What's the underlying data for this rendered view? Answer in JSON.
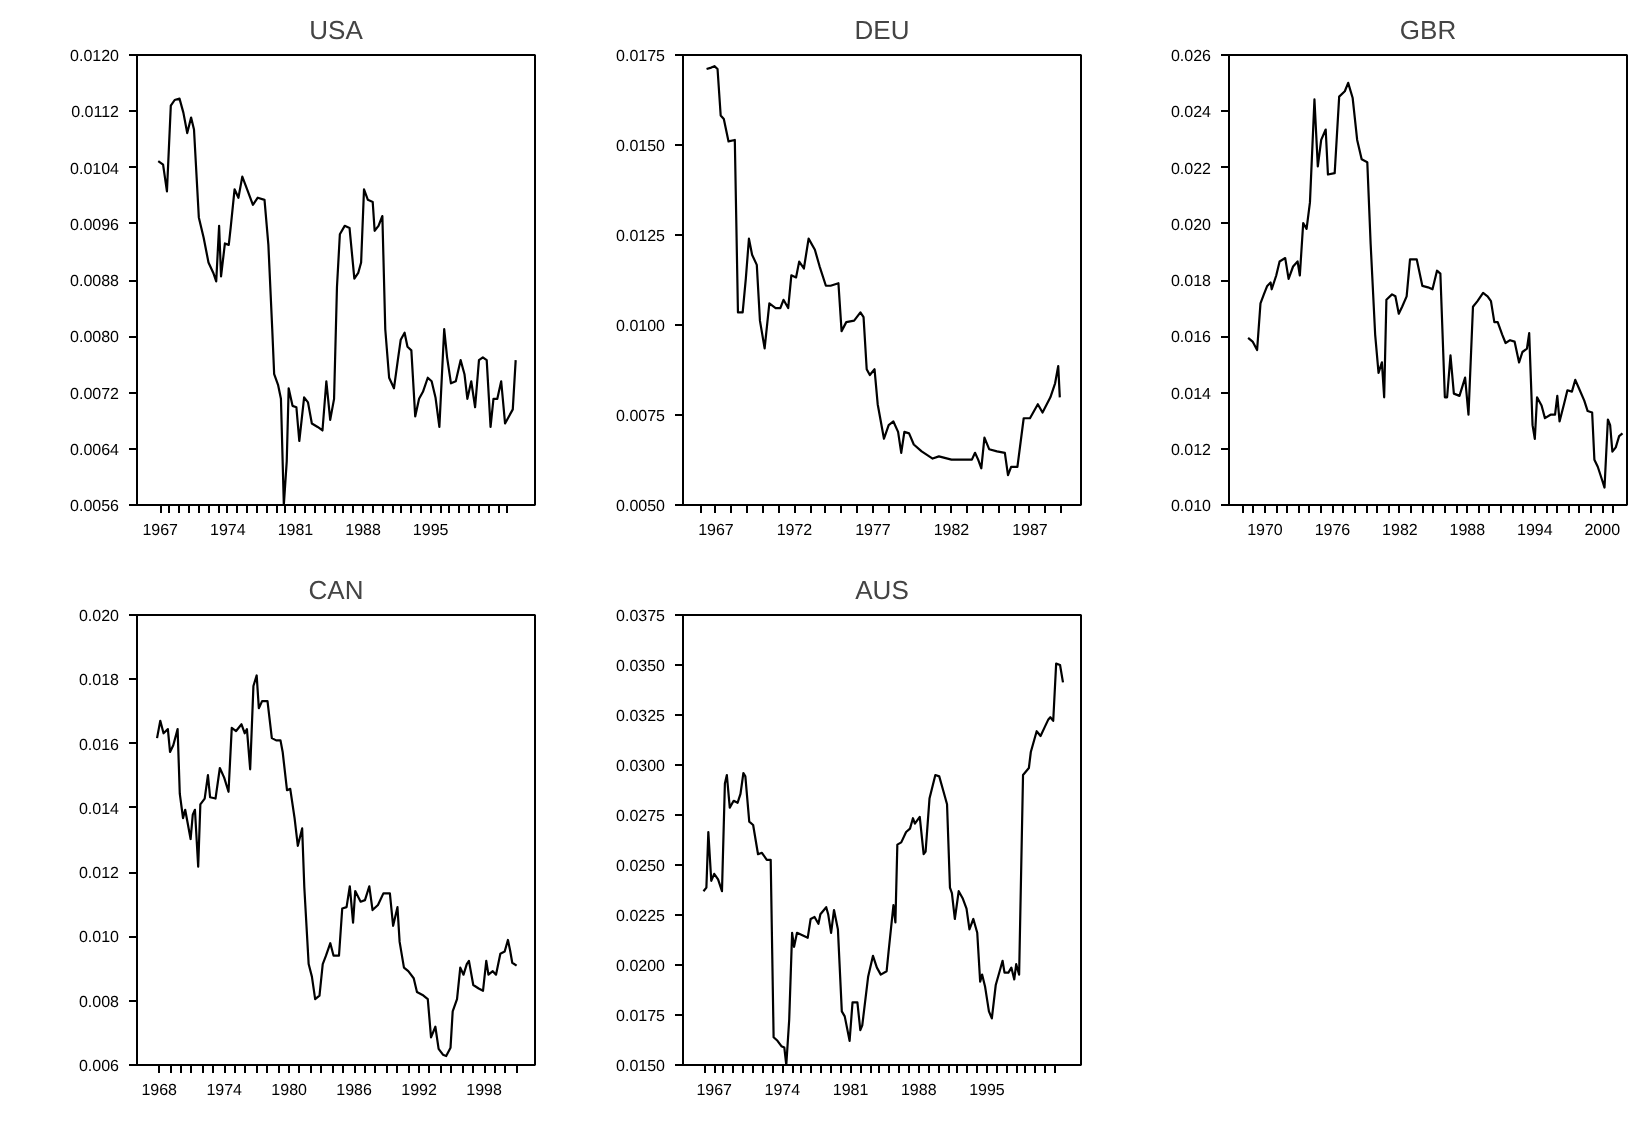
{
  "chart_data": [
    {
      "type": "line",
      "title": "USA",
      "x": [
        1966.8,
        1967.3,
        1967.7,
        1968.1,
        1968.5,
        1969.0,
        1969.4,
        1969.8,
        1970.2,
        1970.5,
        1971.0,
        1971.5,
        1972.0,
        1972.5,
        1972.8,
        1973.1,
        1973.3,
        1973.7,
        1974.1,
        1974.3,
        1974.7,
        1975.1,
        1975.5,
        1976.0,
        1976.6,
        1977.1,
        1977.8,
        1978.2,
        1978.6,
        1978.8,
        1979.2,
        1979.5,
        1979.8,
        1980.1,
        1980.3,
        1980.7,
        1981.1,
        1981.4,
        1981.9,
        1982.3,
        1982.7,
        1983.3,
        1983.8,
        1984.2,
        1984.6,
        1985.0,
        1985.3,
        1985.6,
        1986.1,
        1986.6,
        1987.1,
        1987.5,
        1987.8,
        1988.1,
        1988.5,
        1989.0,
        1989.2,
        1989.6,
        1990.0,
        1990.3,
        1990.7,
        1991.2,
        1991.6,
        1991.9,
        1992.3,
        1992.6,
        1993.0,
        1993.4,
        1993.8,
        1994.2,
        1994.7,
        1995.1,
        1995.5,
        1995.9,
        1996.4,
        1996.7,
        1997.1,
        1997.6,
        1998.1,
        1998.5,
        1998.8,
        1999.2,
        1999.6,
        2000.0,
        2000.4,
        2000.8,
        2001.2,
        2001.5,
        2001.9,
        2002.3,
        2002.7,
        2003.1,
        2003.5,
        2003.8
      ],
      "series": [
        {
          "color": "#000000",
          "values": [
            0.01049,
            0.01044,
            0.01006,
            0.01128,
            0.01136,
            0.01138,
            0.01118,
            0.01089,
            0.01111,
            0.01094,
            0.00969,
            0.0094,
            0.00905,
            0.0089,
            0.00878,
            0.00957,
            0.00885,
            0.00932,
            0.0093,
            0.00955,
            0.01009,
            0.00997,
            0.01027,
            0.01009,
            0.00987,
            0.00997,
            0.00994,
            0.0093,
            0.0081,
            0.00746,
            0.00731,
            0.00711,
            0.0056,
            0.00622,
            0.00726,
            0.00701,
            0.00699,
            0.00651,
            0.00713,
            0.00706,
            0.00676,
            0.00671,
            0.00666,
            0.00736,
            0.00681,
            0.00711,
            0.0087,
            0.00945,
            0.00957,
            0.00954,
            0.00882,
            0.0089,
            0.00905,
            0.01009,
            0.00994,
            0.00991,
            0.0095,
            0.00957,
            0.00971,
            0.0081,
            0.00741,
            0.00726,
            0.00766,
            0.00795,
            0.00805,
            0.00785,
            0.0078,
            0.00686,
            0.00711,
            0.00721,
            0.00741,
            0.00736,
            0.00713,
            0.00671,
            0.0081,
            0.0077,
            0.00733,
            0.00736,
            0.00766,
            0.00746,
            0.00711,
            0.00736,
            0.00699,
            0.00766,
            0.0077,
            0.00766,
            0.00671,
            0.00711,
            0.00711,
            0.00736,
            0.00676,
            0.00686,
            0.00696,
            0.00766
          ]
        }
      ],
      "xlim": [
        1964.6,
        2005.8
      ],
      "ylim": [
        0.0056,
        0.012
      ],
      "yticks": [
        {
          "value": 0.0056,
          "label": "0.0056"
        },
        {
          "value": 0.0064,
          "label": "0.0064"
        },
        {
          "value": 0.0072,
          "label": "0.0072"
        },
        {
          "value": 0.008,
          "label": "0.0080"
        },
        {
          "value": 0.0088,
          "label": "0.0088"
        },
        {
          "value": 0.0096,
          "label": "0.0096"
        },
        {
          "value": 0.0104,
          "label": "0.0104"
        },
        {
          "value": 0.0112,
          "label": "0.0112"
        },
        {
          "value": 0.012,
          "label": "0.0120"
        }
      ],
      "xticks": [
        1967,
        {
          "value": 1968,
          "label": null
        },
        {
          "value": 1969,
          "label": null
        },
        {
          "value": 1970,
          "label": null
        },
        {
          "value": 1971,
          "label": null
        },
        {
          "value": 1972,
          "label": null
        },
        {
          "value": 1973,
          "label": null
        },
        1974,
        {
          "value": 1975,
          "label": null
        },
        {
          "value": 1976,
          "label": null
        },
        {
          "value": 1977,
          "label": null
        },
        {
          "value": 1978,
          "label": null
        },
        {
          "value": 1979,
          "label": null
        },
        {
          "value": 1980,
          "label": null
        },
        1981,
        {
          "value": 1982,
          "label": null
        },
        {
          "value": 1983,
          "label": null
        },
        {
          "value": 1984,
          "label": null
        },
        {
          "value": 1985,
          "label": null
        },
        {
          "value": 1986,
          "label": null
        },
        {
          "value": 1987,
          "label": null
        },
        1988,
        {
          "value": 1989,
          "label": null
        },
        {
          "value": 1990,
          "label": null
        },
        {
          "value": 1991,
          "label": null
        },
        {
          "value": 1992,
          "label": null
        },
        {
          "value": 1993,
          "label": null
        },
        {
          "value": 1994,
          "label": null
        },
        1995,
        {
          "value": 1996,
          "label": null
        },
        {
          "value": 1997,
          "label": null
        },
        {
          "value": 1998,
          "label": null
        },
        {
          "value": 1999,
          "label": null
        },
        {
          "value": 2000,
          "label": null
        },
        {
          "value": 2001,
          "label": null
        },
        {
          "value": 2002,
          "label": null
        },
        {
          "value": 2003,
          "label": null
        }
      ]
    },
    {
      "type": "line",
      "title": "DEU",
      "x": [
        1966.4,
        1966.7,
        1966.9,
        1967.1,
        1967.3,
        1967.5,
        1967.8,
        1968.2,
        1968.4,
        1968.7,
        1968.9,
        1969.1,
        1969.3,
        1969.6,
        1969.8,
        1970.1,
        1970.4,
        1970.8,
        1971.1,
        1971.3,
        1971.6,
        1971.8,
        1972.1,
        1972.3,
        1972.6,
        1972.9,
        1973.3,
        1973.6,
        1974.0,
        1974.3,
        1974.8,
        1975.0,
        1975.3,
        1975.8,
        1976.2,
        1976.4,
        1976.6,
        1976.8,
        1977.1,
        1977.3,
        1977.7,
        1978.0,
        1978.3,
        1978.6,
        1978.8,
        1979.0,
        1979.3,
        1979.6,
        1980.1,
        1980.8,
        1981.2,
        1982.0,
        1982.8,
        1983.3,
        1983.5,
        1983.7,
        1983.9,
        1984.1,
        1984.4,
        1984.9,
        1985.4,
        1985.6,
        1985.8,
        1986.2,
        1986.6,
        1987.0,
        1987.5,
        1987.8,
        1988.3,
        1988.6,
        1988.8,
        1988.9
      ],
      "series": [
        {
          "color": "#000000",
          "values": [
            0.01711,
            0.01715,
            0.01719,
            0.01711,
            0.01582,
            0.01572,
            0.0151,
            0.01514,
            0.01035,
            0.01035,
            0.01128,
            0.0124,
            0.01195,
            0.01167,
            0.01012,
            0.00935,
            0.0106,
            0.01047,
            0.01047,
            0.0107,
            0.01047,
            0.01138,
            0.01132,
            0.01176,
            0.01157,
            0.0124,
            0.01209,
            0.01163,
            0.01109,
            0.01109,
            0.01116,
            0.00983,
            0.01008,
            0.01012,
            0.01035,
            0.01022,
            0.00877,
            0.00861,
            0.00877,
            0.0078,
            0.00684,
            0.00722,
            0.00732,
            0.00703,
            0.00645,
            0.00703,
            0.00699,
            0.00668,
            0.00649,
            0.00629,
            0.00635,
            0.00626,
            0.00626,
            0.00626,
            0.00645,
            0.00626,
            0.00602,
            0.00687,
            0.00655,
            0.00649,
            0.00645,
            0.00583,
            0.00606,
            0.00606,
            0.00741,
            0.00741,
            0.0078,
            0.00757,
            0.00799,
            0.00838,
            0.00886,
            0.00799
          ]
        }
      ],
      "xlim": [
        1964.9,
        1990.25
      ],
      "ylim": [
        0.005,
        0.0175
      ],
      "yticks": [
        {
          "value": 0.005,
          "label": "0.0050"
        },
        {
          "value": 0.0075,
          "label": "0.0075"
        },
        {
          "value": 0.01,
          "label": "0.0100"
        },
        {
          "value": 0.0125,
          "label": "0.0125"
        },
        {
          "value": 0.015,
          "label": "0.0150"
        },
        {
          "value": 0.0175,
          "label": "0.0175"
        }
      ],
      "xticks": [
        {
          "value": 1966,
          "label": null
        },
        1967,
        {
          "value": 1968,
          "label": null
        },
        {
          "value": 1969,
          "label": null
        },
        {
          "value": 1970,
          "label": null
        },
        {
          "value": 1971,
          "label": null
        },
        1972,
        {
          "value": 1973,
          "label": null
        },
        {
          "value": 1974,
          "label": null
        },
        {
          "value": 1975,
          "label": null
        },
        {
          "value": 1976,
          "label": null
        },
        1977,
        {
          "value": 1978,
          "label": null
        },
        {
          "value": 1979,
          "label": null
        },
        {
          "value": 1980,
          "label": null
        },
        {
          "value": 1981,
          "label": null
        },
        1982,
        {
          "value": 1983,
          "label": null
        },
        {
          "value": 1984,
          "label": null
        },
        {
          "value": 1985,
          "label": null
        },
        {
          "value": 1986,
          "label": null
        },
        1987,
        {
          "value": 1988,
          "label": null
        },
        {
          "value": 1989,
          "label": null
        }
      ]
    },
    {
      "type": "line",
      "title": "GBR",
      "x": [
        1968.5,
        1968.9,
        1969.3,
        1969.6,
        1969.9,
        1970.2,
        1970.5,
        1970.6,
        1971.0,
        1971.3,
        1971.8,
        1972.1,
        1972.5,
        1972.9,
        1973.1,
        1973.4,
        1973.7,
        1974.0,
        1974.4,
        1974.7,
        1975.0,
        1975.4,
        1975.6,
        1976.2,
        1976.6,
        1977.1,
        1977.4,
        1977.8,
        1978.2,
        1978.6,
        1979.1,
        1979.4,
        1979.8,
        1980.1,
        1980.4,
        1980.6,
        1980.8,
        1981.3,
        1981.6,
        1981.9,
        1982.2,
        1982.6,
        1982.9,
        1983.5,
        1984.0,
        1984.5,
        1984.9,
        1985.3,
        1985.6,
        1986.0,
        1986.2,
        1986.5,
        1986.8,
        1987.3,
        1987.8,
        1988.1,
        1988.5,
        1988.9,
        1989.4,
        1989.8,
        1990.1,
        1990.4,
        1990.7,
        1991.1,
        1991.4,
        1991.8,
        1992.2,
        1992.6,
        1992.9,
        1993.3,
        1993.5,
        1993.8,
        1994.0,
        1994.2,
        1994.6,
        1994.9,
        1995.4,
        1995.8,
        1996.0,
        1996.2,
        1996.6,
        1996.9,
        1997.3,
        1997.6,
        1998.0,
        1998.4,
        1998.7,
        1999.1,
        1999.3,
        1999.6,
        2000.0,
        2000.2,
        2000.5,
        2000.7,
        2000.9,
        2001.2,
        2001.5,
        2001.8
      ],
      "series": [
        {
          "color": "#000000",
          "values": [
            0.01594,
            0.01581,
            0.01551,
            0.01717,
            0.01749,
            0.01779,
            0.01791,
            0.01767,
            0.01816,
            0.01866,
            0.01878,
            0.01804,
            0.01848,
            0.01866,
            0.01816,
            0.02002,
            0.01982,
            0.02076,
            0.02442,
            0.02204,
            0.02298,
            0.02335,
            0.02175,
            0.0218,
            0.02452,
            0.02471,
            0.02501,
            0.02447,
            0.02298,
            0.02229,
            0.02219,
            0.01927,
            0.01606,
            0.0147,
            0.01507,
            0.01383,
            0.0173,
            0.01749,
            0.01742,
            0.0168,
            0.01705,
            0.01742,
            0.01873,
            0.01873,
            0.01779,
            0.01774,
            0.01767,
            0.01833,
            0.01823,
            0.01383,
            0.01383,
            0.01532,
            0.01396,
            0.01388,
            0.01453,
            0.01321,
            0.01705,
            0.01725,
            0.01754,
            0.01742,
            0.01725,
            0.0165,
            0.0165,
            0.01606,
            0.01576,
            0.01586,
            0.01581,
            0.01507,
            0.01544,
            0.01556,
            0.01611,
            0.01284,
            0.01235,
            0.01383,
            0.01354,
            0.01309,
            0.01321,
            0.01321,
            0.01388,
            0.01297,
            0.01359,
            0.01408,
            0.01403,
            0.01445,
            0.01408,
            0.01371,
            0.01334,
            0.01329,
            0.01161,
            0.01136,
            0.01087,
            0.01062,
            0.01304,
            0.01284,
            0.0119,
            0.01205,
            0.01245,
            0.01255
          ]
        }
      ],
      "xlim": [
        1966.8,
        2002.2
      ],
      "ylim": [
        0.01,
        0.026
      ],
      "yticks": [
        {
          "value": 0.01,
          "label": "0.010"
        },
        {
          "value": 0.012,
          "label": "0.012"
        },
        {
          "value": 0.014,
          "label": "0.014"
        },
        {
          "value": 0.016,
          "label": "0.016"
        },
        {
          "value": 0.018,
          "label": "0.018"
        },
        {
          "value": 0.02,
          "label": "0.020"
        },
        {
          "value": 0.022,
          "label": "0.022"
        },
        {
          "value": 0.024,
          "label": "0.024"
        },
        {
          "value": 0.026,
          "label": "0.026"
        }
      ],
      "xticks": [
        {
          "value": 1968,
          "label": null
        },
        {
          "value": 1969,
          "label": null
        },
        1970,
        {
          "value": 1971,
          "label": null
        },
        {
          "value": 1972,
          "label": null
        },
        {
          "value": 1973,
          "label": null
        },
        {
          "value": 1974,
          "label": null
        },
        {
          "value": 1975,
          "label": null
        },
        1976,
        {
          "value": 1977,
          "label": null
        },
        {
          "value": 1978,
          "label": null
        },
        {
          "value": 1979,
          "label": null
        },
        {
          "value": 1980,
          "label": null
        },
        {
          "value": 1981,
          "label": null
        },
        1982,
        {
          "value": 1983,
          "label": null
        },
        {
          "value": 1984,
          "label": null
        },
        {
          "value": 1985,
          "label": null
        },
        {
          "value": 1986,
          "label": null
        },
        {
          "value": 1987,
          "label": null
        },
        1988,
        {
          "value": 1989,
          "label": null
        },
        {
          "value": 1990,
          "label": null
        },
        {
          "value": 1991,
          "label": null
        },
        {
          "value": 1992,
          "label": null
        },
        {
          "value": 1993,
          "label": null
        },
        1994,
        {
          "value": 1995,
          "label": null
        },
        {
          "value": 1996,
          "label": null
        },
        {
          "value": 1997,
          "label": null
        },
        {
          "value": 1998,
          "label": null
        },
        {
          "value": 1999,
          "label": null
        },
        2000,
        {
          "value": 2001,
          "label": null
        }
      ]
    },
    {
      "type": "line",
      "title": "CAN",
      "x": [
        1967.8,
        1968.1,
        1968.4,
        1968.8,
        1969.0,
        1969.3,
        1969.7,
        1969.9,
        1970.2,
        1970.4,
        1970.9,
        1971.1,
        1971.3,
        1971.6,
        1971.8,
        1972.2,
        1972.5,
        1972.7,
        1973.2,
        1973.6,
        1974.0,
        1974.4,
        1974.7,
        1975.1,
        1975.6,
        1975.9,
        1976.1,
        1976.4,
        1976.7,
        1977.0,
        1977.2,
        1977.5,
        1978.0,
        1978.4,
        1978.8,
        1979.2,
        1979.4,
        1979.8,
        1980.1,
        1980.5,
        1980.8,
        1981.2,
        1981.4,
        1981.8,
        1982.1,
        1982.4,
        1982.8,
        1983.1,
        1983.4,
        1983.8,
        1984.1,
        1984.6,
        1984.9,
        1985.3,
        1985.6,
        1985.9,
        1986.1,
        1986.6,
        1987.0,
        1987.4,
        1987.7,
        1988.2,
        1988.7,
        1989.3,
        1989.6,
        1990.0,
        1990.2,
        1990.6,
        1991.0,
        1991.5,
        1991.8,
        1992.4,
        1992.8,
        1993.1,
        1993.5,
        1993.8,
        1994.2,
        1994.5,
        1994.9,
        1995.1,
        1995.5,
        1995.8,
        1996.1,
        1996.4,
        1996.6,
        1997.0,
        1997.5,
        1997.9,
        1998.2,
        1998.4,
        1998.8,
        1999.1,
        1999.5,
        1999.9,
        2000.2,
        2000.4,
        2000.6,
        2001.0
      ],
      "series": [
        {
          "color": "#000000",
          "values": [
            0.01617,
            0.01671,
            0.01632,
            0.01645,
            0.01574,
            0.01595,
            0.01645,
            0.01444,
            0.01368,
            0.01394,
            0.01303,
            0.01379,
            0.01394,
            0.01217,
            0.01411,
            0.01429,
            0.01502,
            0.01433,
            0.01429,
            0.01524,
            0.01494,
            0.0145,
            0.01649,
            0.01639,
            0.0166,
            0.01632,
            0.01645,
            0.0152,
            0.01779,
            0.01812,
            0.0171,
            0.01732,
            0.01732,
            0.01617,
            0.0161,
            0.0161,
            0.01574,
            0.01455,
            0.01459,
            0.01368,
            0.01282,
            0.01336,
            0.01152,
            0.00914,
            0.00875,
            0.00805,
            0.00816,
            0.00914,
            0.0094,
            0.00979,
            0.0094,
            0.0094,
            0.01087,
            0.01091,
            0.01156,
            0.01043,
            0.01141,
            0.01108,
            0.01113,
            0.01156,
            0.01082,
            0.01098,
            0.01134,
            0.01134,
            0.01033,
            0.01091,
            0.00983,
            0.00903,
            0.00892,
            0.0087,
            0.00827,
            0.00816,
            0.00805,
            0.00686,
            0.00719,
            0.0065,
            0.00632,
            0.00628,
            0.00654,
            0.00767,
            0.00805,
            0.00903,
            0.00881,
            0.00914,
            0.00924,
            0.00849,
            0.00838,
            0.00831,
            0.00924,
            0.00881,
            0.00892,
            0.00881,
            0.00946,
            0.00953,
            0.00989,
            0.00957,
            0.00918,
            0.00909
          ]
        }
      ],
      "xlim": [
        1965.95,
        2002.7
      ],
      "ylim": [
        0.006,
        0.02
      ],
      "yticks": [
        {
          "value": 0.006,
          "label": "0.006"
        },
        {
          "value": 0.008,
          "label": "0.008"
        },
        {
          "value": 0.01,
          "label": "0.010"
        },
        {
          "value": 0.012,
          "label": "0.012"
        },
        {
          "value": 0.014,
          "label": "0.014"
        },
        {
          "value": 0.016,
          "label": "0.016"
        },
        {
          "value": 0.018,
          "label": "0.018"
        },
        {
          "value": 0.02,
          "label": "0.020"
        }
      ],
      "xticks": [
        1968,
        {
          "value": 1969,
          "label": null
        },
        {
          "value": 1970,
          "label": null
        },
        {
          "value": 1971,
          "label": null
        },
        {
          "value": 1972,
          "label": null
        },
        {
          "value": 1973,
          "label": null
        },
        1974,
        {
          "value": 1975,
          "label": null
        },
        {
          "value": 1976,
          "label": null
        },
        {
          "value": 1977,
          "label": null
        },
        {
          "value": 1978,
          "label": null
        },
        {
          "value": 1979,
          "label": null
        },
        1980,
        {
          "value": 1981,
          "label": null
        },
        {
          "value": 1982,
          "label": null
        },
        {
          "value": 1983,
          "label": null
        },
        {
          "value": 1984,
          "label": null
        },
        {
          "value": 1985,
          "label": null
        },
        1986,
        {
          "value": 1987,
          "label": null
        },
        {
          "value": 1988,
          "label": null
        },
        {
          "value": 1989,
          "label": null
        },
        {
          "value": 1990,
          "label": null
        },
        {
          "value": 1991,
          "label": null
        },
        1992,
        {
          "value": 1993,
          "label": null
        },
        {
          "value": 1994,
          "label": null
        },
        {
          "value": 1995,
          "label": null
        },
        {
          "value": 1996,
          "label": null
        },
        {
          "value": 1997,
          "label": null
        },
        1998,
        {
          "value": 1999,
          "label": null
        },
        {
          "value": 2000,
          "label": null
        },
        {
          "value": 2001,
          "label": null
        }
      ]
    },
    {
      "type": "line",
      "title": "AUS",
      "x": [
        1965.9,
        1966.2,
        1966.4,
        1966.7,
        1967.0,
        1967.4,
        1967.8,
        1968.1,
        1968.3,
        1968.6,
        1969.0,
        1969.4,
        1969.7,
        1970.0,
        1970.2,
        1970.6,
        1971.0,
        1971.5,
        1971.9,
        1972.4,
        1972.8,
        1973.1,
        1973.5,
        1973.9,
        1974.2,
        1974.4,
        1974.7,
        1975.0,
        1975.2,
        1975.5,
        1976.0,
        1976.6,
        1976.9,
        1977.3,
        1977.7,
        1977.9,
        1978.5,
        1978.7,
        1979.0,
        1979.3,
        1979.7,
        1980.1,
        1980.4,
        1980.9,
        1981.2,
        1981.7,
        1982.0,
        1982.2,
        1982.8,
        1983.3,
        1983.7,
        1984.1,
        1984.7,
        1984.9,
        1985.4,
        1985.6,
        1985.8,
        1986.2,
        1986.7,
        1987.1,
        1987.4,
        1987.6,
        1988.1,
        1988.5,
        1988.7,
        1989.1,
        1989.7,
        1990.1,
        1990.5,
        1990.9,
        1991.2,
        1991.4,
        1991.7,
        1992.1,
        1992.5,
        1992.9,
        1993.2,
        1993.6,
        1994.0,
        1994.3,
        1994.5,
        1994.8,
        1995.2,
        1995.5,
        1995.9,
        1996.3,
        1996.6,
        1996.8,
        1997.2,
        1997.5,
        1997.8,
        1998.0,
        1998.3,
        1998.7,
        1999.3,
        1999.5,
        2000.1,
        2000.5,
        2000.9,
        2001.3,
        2001.5,
        2001.8,
        2002.1,
        2002.5,
        2002.8
      ],
      "series": [
        {
          "color": "#000000",
          "values": [
            0.02369,
            0.02387,
            0.02665,
            0.02421,
            0.02456,
            0.02428,
            0.02369,
            0.02908,
            0.0295,
            0.02787,
            0.02821,
            0.02811,
            0.02856,
            0.0296,
            0.02943,
            0.02717,
            0.027,
            0.02554,
            0.02561,
            0.02526,
            0.02526,
            0.01639,
            0.01621,
            0.01594,
            0.01587,
            0.015,
            0.01726,
            0.02161,
            0.02091,
            0.02161,
            0.0215,
            0.02136,
            0.0223,
            0.0224,
            0.02206,
            0.02254,
            0.02289,
            0.02254,
            0.02161,
            0.02275,
            0.02178,
            0.01768,
            0.01743,
            0.01621,
            0.01813,
            0.01813,
            0.01674,
            0.01698,
            0.01941,
            0.02046,
            0.01987,
            0.01952,
            0.01969,
            0.02067,
            0.023,
            0.02213,
            0.02602,
            0.02613,
            0.02665,
            0.02682,
            0.02734,
            0.02707,
            0.02741,
            0.02554,
            0.02567,
            0.02832,
            0.0295,
            0.02943,
            0.02874,
            0.02804,
            0.02387,
            0.02359,
            0.0223,
            0.02369,
            0.02334,
            0.02282,
            0.02178,
            0.0223,
            0.02161,
            0.01917,
            0.01952,
            0.01893,
            0.01768,
            0.01733,
            0.019,
            0.01969,
            0.02021,
            0.01962,
            0.01962,
            0.01987,
            0.01928,
            0.02004,
            0.01952,
            0.0295,
            0.02985,
            0.03065,
            0.03169,
            0.03145,
            0.03187,
            0.03228,
            0.03239,
            0.03221,
            0.03507,
            0.035,
            0.03413
          ]
        }
      ],
      "xlim": [
        1963.8,
        2004.65
      ],
      "ylim": [
        0.015,
        0.0375
      ],
      "yticks": [
        {
          "value": 0.015,
          "label": "0.0150"
        },
        {
          "value": 0.0175,
          "label": "0.0175"
        },
        {
          "value": 0.02,
          "label": "0.0200"
        },
        {
          "value": 0.0225,
          "label": "0.0225"
        },
        {
          "value": 0.025,
          "label": "0.0250"
        },
        {
          "value": 0.0275,
          "label": "0.0275"
        },
        {
          "value": 0.03,
          "label": "0.0300"
        },
        {
          "value": 0.0325,
          "label": "0.0325"
        },
        {
          "value": 0.035,
          "label": "0.0350"
        },
        {
          "value": 0.0375,
          "label": "0.0375"
        }
      ],
      "xticks": [
        {
          "value": 1966,
          "label": null
        },
        1967,
        {
          "value": 1968,
          "label": null
        },
        {
          "value": 1969,
          "label": null
        },
        {
          "value": 1970,
          "label": null
        },
        {
          "value": 1971,
          "label": null
        },
        {
          "value": 1972,
          "label": null
        },
        {
          "value": 1973,
          "label": null
        },
        1974,
        {
          "value": 1975,
          "label": null
        },
        {
          "value": 1976,
          "label": null
        },
        {
          "value": 1977,
          "label": null
        },
        {
          "value": 1978,
          "label": null
        },
        {
          "value": 1979,
          "label": null
        },
        {
          "value": 1980,
          "label": null
        },
        1981,
        {
          "value": 1982,
          "label": null
        },
        {
          "value": 1983,
          "label": null
        },
        {
          "value": 1984,
          "label": null
        },
        {
          "value": 1985,
          "label": null
        },
        {
          "value": 1986,
          "label": null
        },
        {
          "value": 1987,
          "label": null
        },
        1988,
        {
          "value": 1989,
          "label": null
        },
        {
          "value": 1990,
          "label": null
        },
        {
          "value": 1991,
          "label": null
        },
        {
          "value": 1992,
          "label": null
        },
        {
          "value": 1993,
          "label": null
        },
        {
          "value": 1994,
          "label": null
        },
        1995,
        {
          "value": 1996,
          "label": null
        },
        {
          "value": 1997,
          "label": null
        },
        {
          "value": 1998,
          "label": null
        },
        {
          "value": 1999,
          "label": null
        },
        {
          "value": 2000,
          "label": null
        },
        {
          "value": 2001,
          "label": null
        },
        {
          "value": 2002,
          "label": null
        }
      ]
    }
  ]
}
